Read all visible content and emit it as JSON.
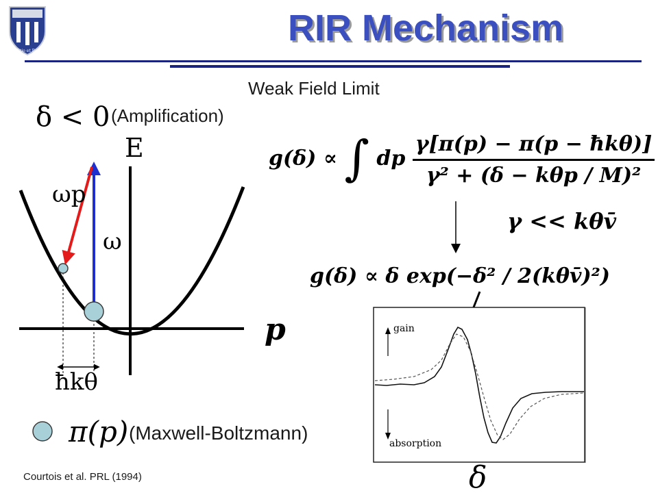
{
  "slide": {
    "title": "RIR Mechanism",
    "subtitle": "Weak Field Limit",
    "logo_text": "Eruditio et Religio",
    "colors": {
      "title": "#3b4fbf",
      "title_shadow": "#9a9a9a",
      "rule": "#1a237e",
      "absorption_arrow": "#1f2fcf",
      "emission_arrow": "#e31b1b",
      "atom_fill": "#a8d0d8"
    }
  },
  "left_diagram": {
    "condition": "δ < 0",
    "condition_note": "(Amplification)",
    "energy_axis_label": "E",
    "momentum_axis_label": "p",
    "probe_label": "ωp",
    "pump_label": "ω",
    "recoil_label": "ħkθ"
  },
  "legend": {
    "distribution_symbol": "π(p)",
    "distribution_label": "(Maxwell-Boltzmann)"
  },
  "equations": {
    "gain_integral_lhs": "g(δ) ∝",
    "gain_integral_dp": "dp",
    "gain_integral_numerator": "γ[π(p) − π(p − ħkθ)]",
    "gain_integral_denominator": "γ² + (δ − kθp / M)²",
    "condition": "γ << kθv̄",
    "gain_result": "g(δ) ∝ δ exp(−δ² / 2(kθv̄)²)"
  },
  "inset_plot": {
    "gain_label": "gain",
    "absorption_label": "absorption",
    "x_label": "δ"
  },
  "citation": "Courtois et al. PRL (1994)"
}
